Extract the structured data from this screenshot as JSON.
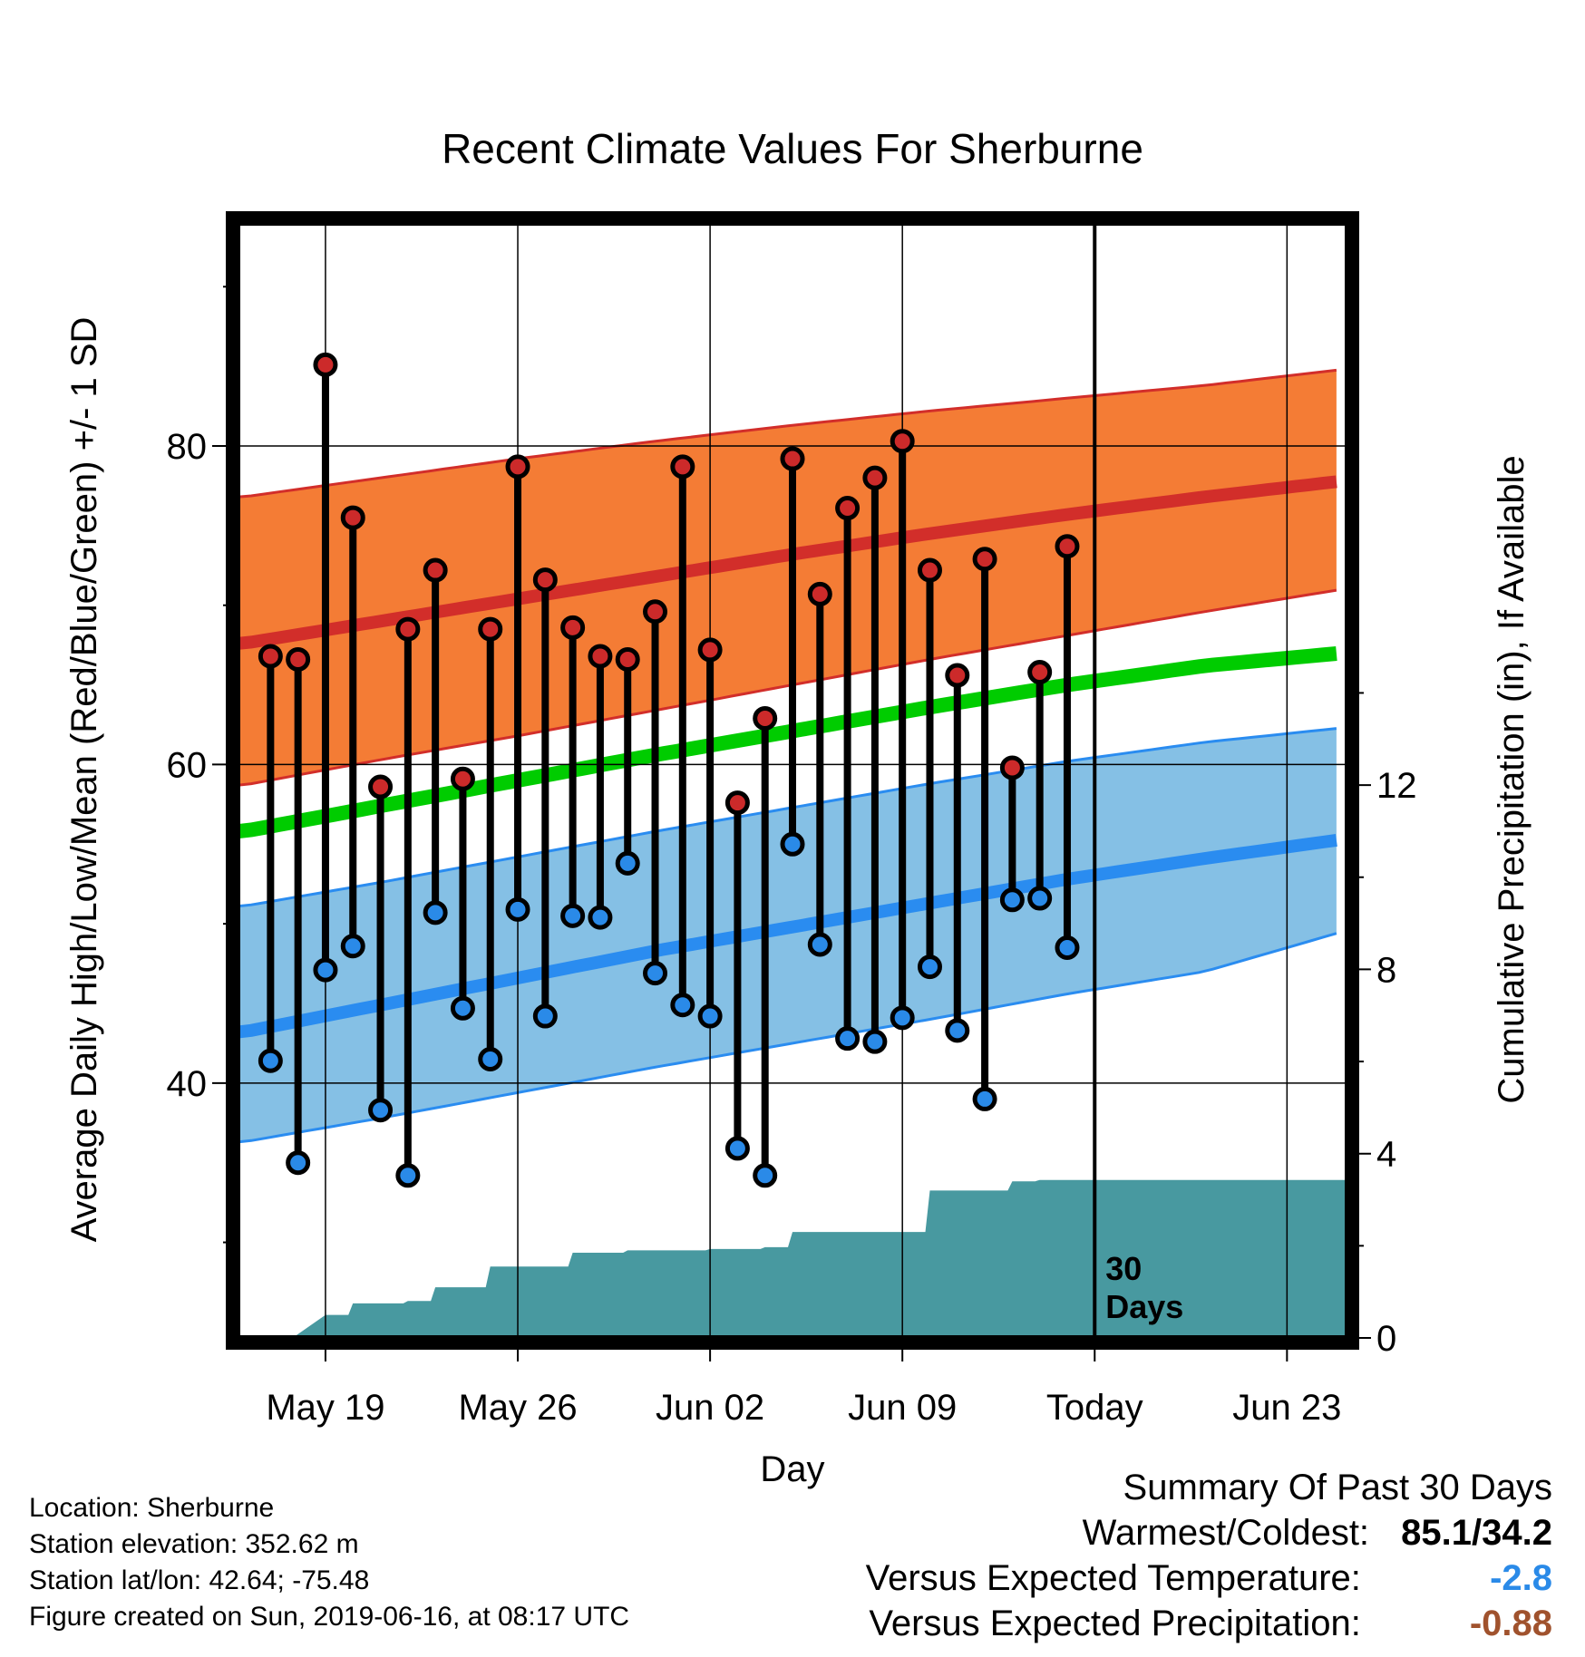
{
  "chart_data": {
    "type": "line",
    "title": "Recent Climate Values For Sherburne",
    "xlabel": "Day",
    "ylabel": "Average Daily High/Low/Mean (Red/Blue/Green) +/- 1 SD",
    "y2label": "Cumulative Precipitation (in), If Available",
    "ylim": [
      24,
      94
    ],
    "y2lim": [
      0,
      24.2
    ],
    "yticks": [
      40,
      60,
      80
    ],
    "y2ticks": [
      0,
      4,
      8,
      12
    ],
    "xlim": [
      -0.2,
      40.2
    ],
    "xtick_days": [
      3,
      10,
      17,
      24,
      31,
      38
    ],
    "xtick_labels": [
      "May 19",
      "May 26",
      "Jun 02",
      "Jun 09",
      "Today",
      "Jun 23"
    ],
    "today_day": 31,
    "today_label": "30\nDays",
    "grid": true,
    "normals": {
      "days": [
        0,
        5,
        10,
        15,
        20,
        25,
        30,
        35,
        40
      ],
      "high_mean": [
        67.6,
        69.0,
        70.4,
        71.8,
        73.2,
        74.5,
        75.7,
        76.8,
        77.8
      ],
      "high_upper": [
        76.8,
        78.0,
        79.2,
        80.3,
        81.3,
        82.2,
        83.0,
        83.8,
        84.8
      ],
      "high_lower": [
        58.7,
        60.3,
        61.8,
        63.4,
        65.0,
        66.6,
        68.1,
        69.6,
        71.0
      ],
      "mean_mean": [
        55.8,
        57.4,
        59.0,
        60.6,
        62.1,
        63.6,
        65.0,
        66.2,
        67.0
      ],
      "low_mean": [
        43.2,
        44.9,
        46.6,
        48.3,
        49.8,
        51.3,
        52.8,
        54.1,
        55.3
      ],
      "low_upper": [
        51.1,
        52.6,
        54.2,
        55.8,
        57.3,
        58.8,
        60.2,
        61.4,
        62.3
      ],
      "low_lower": [
        36.3,
        37.8,
        39.4,
        41.0,
        42.5,
        44.0,
        45.6,
        47.0,
        49.5
      ]
    },
    "series": [
      {
        "name": "High",
        "days": [
          1,
          2,
          3,
          4,
          5,
          6,
          7,
          8,
          9,
          10,
          11,
          12,
          13,
          14,
          15,
          16,
          17,
          18,
          19,
          20,
          21,
          22,
          23,
          24,
          25,
          26,
          27,
          28,
          29,
          30
        ],
        "values": [
          66.8,
          66.6,
          85.1,
          75.5,
          58.6,
          68.5,
          72.2,
          59.1,
          68.5,
          78.7,
          71.6,
          68.6,
          66.8,
          66.6,
          69.6,
          78.7,
          67.2,
          57.6,
          62.9,
          79.2,
          70.7,
          76.1,
          78.0,
          80.3,
          72.2,
          65.6,
          72.9,
          59.8,
          65.8,
          73.7
        ]
      },
      {
        "name": "Low",
        "days": [
          1,
          2,
          3,
          4,
          5,
          6,
          7,
          8,
          9,
          10,
          11,
          12,
          13,
          14,
          15,
          16,
          17,
          18,
          19,
          20,
          21,
          22,
          23,
          24,
          25,
          26,
          27,
          28,
          29,
          30
        ],
        "values": [
          41.4,
          35.0,
          47.1,
          48.6,
          38.3,
          34.2,
          50.7,
          44.7,
          41.5,
          50.9,
          44.2,
          50.5,
          50.4,
          53.8,
          46.9,
          44.9,
          44.2,
          35.9,
          34.2,
          55.0,
          48.7,
          42.8,
          42.6,
          44.1,
          47.3,
          43.3,
          39.0,
          51.5,
          51.6,
          48.5
        ]
      }
    ],
    "precip_cumulative": {
      "days": [
        3,
        4,
        5,
        6,
        7,
        8,
        9,
        10,
        11,
        12,
        13,
        14,
        15,
        16,
        17,
        18,
        19,
        20,
        21,
        22,
        23,
        24,
        25,
        26,
        27,
        28,
        29,
        30,
        40
      ],
      "values": [
        0.5,
        0.75,
        0.75,
        0.8,
        1.1,
        1.1,
        1.55,
        1.55,
        1.55,
        1.85,
        1.85,
        1.9,
        1.9,
        1.9,
        1.93,
        1.93,
        1.97,
        2.3,
        2.3,
        2.3,
        2.3,
        2.3,
        3.2,
        3.2,
        3.2,
        3.4,
        3.43,
        3.43,
        3.43
      ],
      "start_day": 1.8
    },
    "colors": {
      "high_band": "#f47c35",
      "high_line": "#d22e2a",
      "mean_line": "#00cc00",
      "low_band": "#85c0e5",
      "low_line": "#2a8cf0",
      "precip": "#4899a0",
      "high_point": "#cc2a2a",
      "low_point": "#2a8ae8"
    }
  },
  "info": {
    "location": "Location: Sherburne",
    "elevation": "Station elevation: 352.62 m",
    "latlon": "Station lat/lon: 42.64; -75.48",
    "created": "Figure created on Sun, 2019-06-16, at 08:17 UTC"
  },
  "summary": {
    "heading": "Summary Of Past 30 Days",
    "warm_cold_label": "Warmest/Coldest:",
    "warm_cold_value": "85.1/34.2",
    "temp_label": "Versus Expected Temperature:",
    "temp_value": "-2.8",
    "temp_color": "#2a8ae8",
    "precip_label": "Versus Expected Precipitation:",
    "precip_value": "-0.88",
    "precip_color": "#a0522d"
  }
}
